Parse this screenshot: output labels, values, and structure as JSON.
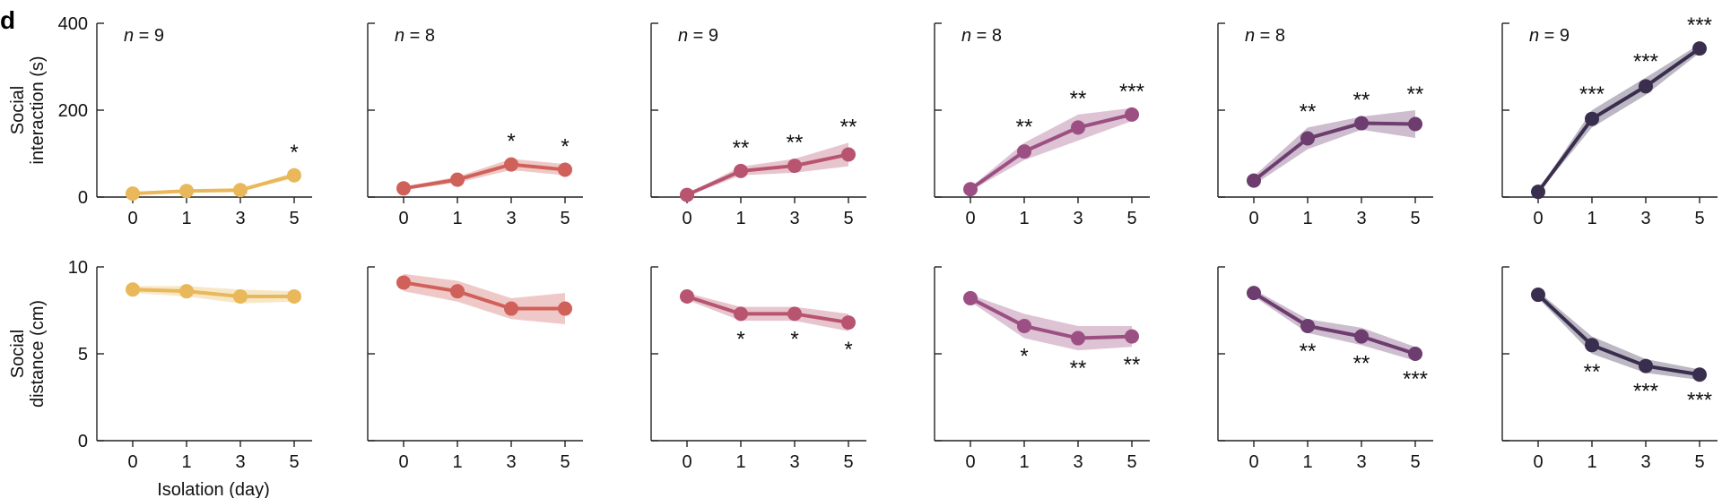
{
  "panel_label": "d",
  "chart_data": {
    "type": "line",
    "x": [
      0,
      1,
      3,
      5
    ],
    "xtick_labels": [
      "0",
      "1",
      "3",
      "5"
    ],
    "xlabel": "Isolation (day)",
    "rows": [
      {
        "id": "social_interaction",
        "ylabel_lines": [
          "Social",
          "interaction (s)"
        ],
        "ylim": [
          0,
          400
        ],
        "yticks": [
          0,
          200,
          400
        ],
        "ytick_labels": [
          "0",
          "200",
          "400"
        ]
      },
      {
        "id": "social_distance",
        "ylabel_lines": [
          "Social",
          "distance (cm)"
        ],
        "ylim": [
          0,
          10
        ],
        "yticks": [
          0,
          5,
          10
        ],
        "ytick_labels": [
          "0",
          "5",
          "10"
        ]
      }
    ],
    "series": [
      {
        "n_label": "n = 9",
        "n_symbol": "n",
        "n_value": "= 9",
        "color": "#e8b85a",
        "social_interaction": {
          "values": [
            8,
            14,
            16,
            50
          ],
          "upper": [
            10,
            16,
            19,
            57
          ],
          "lower": [
            6,
            12,
            13,
            43
          ],
          "stars": [
            "",
            "",
            "",
            "*"
          ]
        },
        "social_distance": {
          "values": [
            8.7,
            8.6,
            8.3,
            8.3
          ],
          "upper": [
            8.9,
            8.9,
            8.7,
            8.6
          ],
          "lower": [
            8.5,
            8.3,
            7.9,
            8.0
          ],
          "stars": [
            "",
            "",
            "",
            ""
          ]
        }
      },
      {
        "n_label": "n = 8",
        "n_symbol": "n",
        "n_value": "= 8",
        "color": "#d0605a",
        "social_interaction": {
          "values": [
            20,
            40,
            75,
            63
          ],
          "upper": [
            24,
            47,
            88,
            76
          ],
          "lower": [
            16,
            33,
            62,
            50
          ],
          "stars": [
            "",
            "",
            "*",
            "*"
          ]
        },
        "social_distance": {
          "values": [
            9.1,
            8.6,
            7.6,
            7.6
          ],
          "upper": [
            9.6,
            9.2,
            8.2,
            8.5
          ],
          "lower": [
            8.6,
            8.0,
            7.0,
            6.7
          ],
          "stars": [
            "",
            "",
            "",
            ""
          ]
        }
      },
      {
        "n_label": "n = 9",
        "n_symbol": "n",
        "n_value": "= 9",
        "color": "#b85470",
        "social_interaction": {
          "values": [
            5,
            60,
            72,
            98
          ],
          "upper": [
            8,
            70,
            88,
            125
          ],
          "lower": [
            2,
            50,
            56,
            71
          ],
          "stars": [
            "",
            "**",
            "**",
            "**"
          ]
        },
        "social_distance": {
          "values": [
            8.3,
            7.3,
            7.3,
            6.8
          ],
          "upper": [
            8.5,
            7.7,
            7.7,
            7.3
          ],
          "lower": [
            8.1,
            6.9,
            6.9,
            6.3
          ],
          "stars": [
            "",
            "*",
            "*",
            "*"
          ]
        }
      },
      {
        "n_label": "n = 8",
        "n_symbol": "n",
        "n_value": "= 8",
        "color": "#9c4f82",
        "social_interaction": {
          "values": [
            18,
            105,
            160,
            190
          ],
          "upper": [
            22,
            125,
            190,
            205
          ],
          "lower": [
            14,
            85,
            130,
            175
          ],
          "stars": [
            "",
            "**",
            "**",
            "***"
          ]
        },
        "social_distance": {
          "values": [
            8.2,
            6.6,
            5.9,
            6.0
          ],
          "upper": [
            8.4,
            7.3,
            6.6,
            6.6
          ],
          "lower": [
            8.0,
            5.9,
            5.2,
            5.4
          ],
          "stars": [
            "",
            "*",
            "**",
            "**"
          ]
        }
      },
      {
        "n_label": "n = 8",
        "n_symbol": "n",
        "n_value": "= 8",
        "color": "#6c3d6e",
        "social_interaction": {
          "values": [
            38,
            135,
            170,
            168
          ],
          "upper": [
            48,
            160,
            185,
            200
          ],
          "lower": [
            28,
            110,
            155,
            136
          ],
          "stars": [
            "",
            "**",
            "**",
            "**"
          ]
        },
        "social_distance": {
          "values": [
            8.5,
            6.6,
            6.0,
            5.0
          ],
          "upper": [
            8.7,
            7.0,
            6.5,
            5.4
          ],
          "lower": [
            8.3,
            6.2,
            5.5,
            4.6
          ],
          "stars": [
            "",
            "**",
            "**",
            "***"
          ]
        }
      },
      {
        "n_label": "n = 9",
        "n_symbol": "n",
        "n_value": "= 9",
        "color": "#3a2e4e",
        "social_interaction": {
          "values": [
            12,
            180,
            255,
            342
          ],
          "upper": [
            15,
            200,
            275,
            352
          ],
          "lower": [
            9,
            160,
            235,
            332
          ],
          "stars": [
            "",
            "***",
            "***",
            "***"
          ]
        },
        "social_distance": {
          "values": [
            8.4,
            5.5,
            4.3,
            3.8
          ],
          "upper": [
            8.6,
            6.0,
            4.7,
            4.1
          ],
          "lower": [
            8.2,
            5.0,
            3.9,
            3.5
          ],
          "stars": [
            "",
            "**",
            "***",
            "***"
          ]
        }
      }
    ]
  }
}
